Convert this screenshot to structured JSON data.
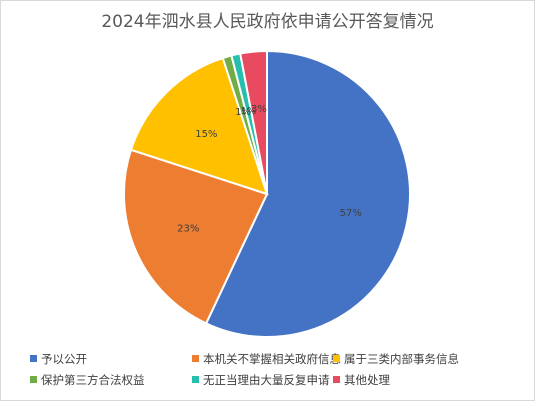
{
  "chart_data": {
    "type": "pie",
    "title": "2024年泗水县人民政府依申请公开答复情况",
    "categories": [
      "予以公开",
      "本机关不掌握相关政府信息",
      "属于三类内部事务信息",
      "保护第三方合法权益",
      "无正当理由大量反复申请",
      "其他处理"
    ],
    "values": [
      57,
      23,
      15,
      1,
      1,
      3
    ],
    "data_labels": [
      "57%",
      "23%",
      "15%",
      "1%",
      "1%",
      "3%"
    ],
    "colors": [
      "#4472C4",
      "#ED7D31",
      "#FFC000",
      "#70AD47",
      "#26BFAE",
      "#E84A5F"
    ],
    "legend_position": "bottom"
  }
}
